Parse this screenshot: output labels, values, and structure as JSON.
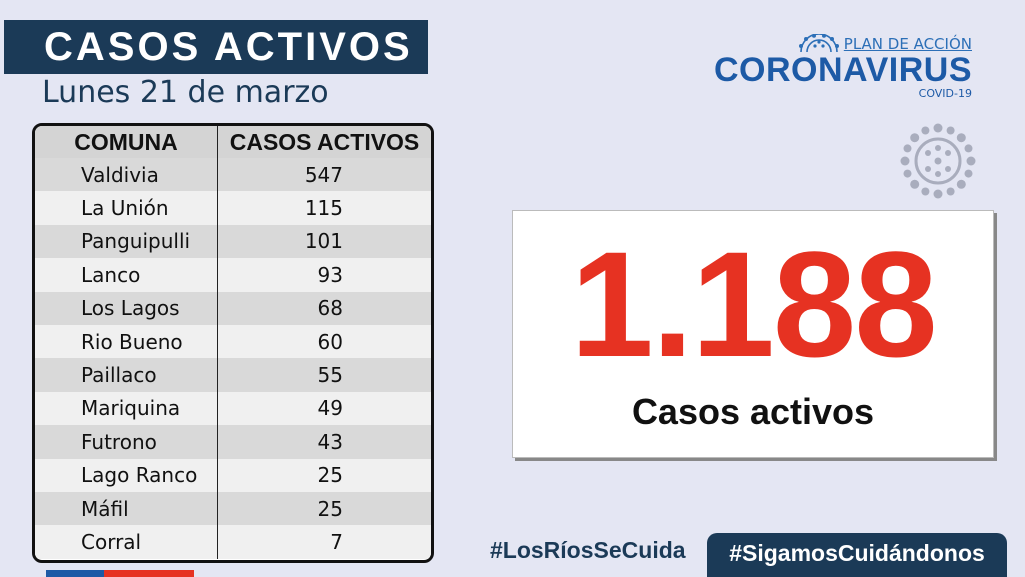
{
  "header": {
    "title": "CASOS ACTIVOS",
    "date": "Lunes 21 de marzo"
  },
  "table": {
    "columns": [
      "COMUNA",
      "CASOS ACTIVOS"
    ],
    "rows": [
      [
        "Valdivia",
        "547"
      ],
      [
        "La Unión",
        "115"
      ],
      [
        "Panguipulli",
        "101"
      ],
      [
        "Lanco",
        "93"
      ],
      [
        "Los Lagos",
        "68"
      ],
      [
        "Rio Bueno",
        "60"
      ],
      [
        "Paillaco",
        "55"
      ],
      [
        "Mariquina",
        "49"
      ],
      [
        "Futrono",
        "43"
      ],
      [
        "Lago Ranco",
        "25"
      ],
      [
        "Máfil",
        "25"
      ],
      [
        "Corral",
        "7"
      ]
    ]
  },
  "logo": {
    "plan": "PLAN DE ACCIÓN",
    "name": "CORONAVIRUS",
    "sub": "COVID-19"
  },
  "total": {
    "value": "1.188",
    "label": "Casos activos"
  },
  "footer": {
    "hashtag_region": "#LosRíosSeCuida",
    "hashtag_campaign": "#SigamosCuidándonos"
  },
  "colors": {
    "navy": "#1b3a57",
    "blue": "#1d5aa6",
    "red": "#e63222",
    "background": "#e4e6f3"
  },
  "icons": [
    "virus-icon"
  ]
}
